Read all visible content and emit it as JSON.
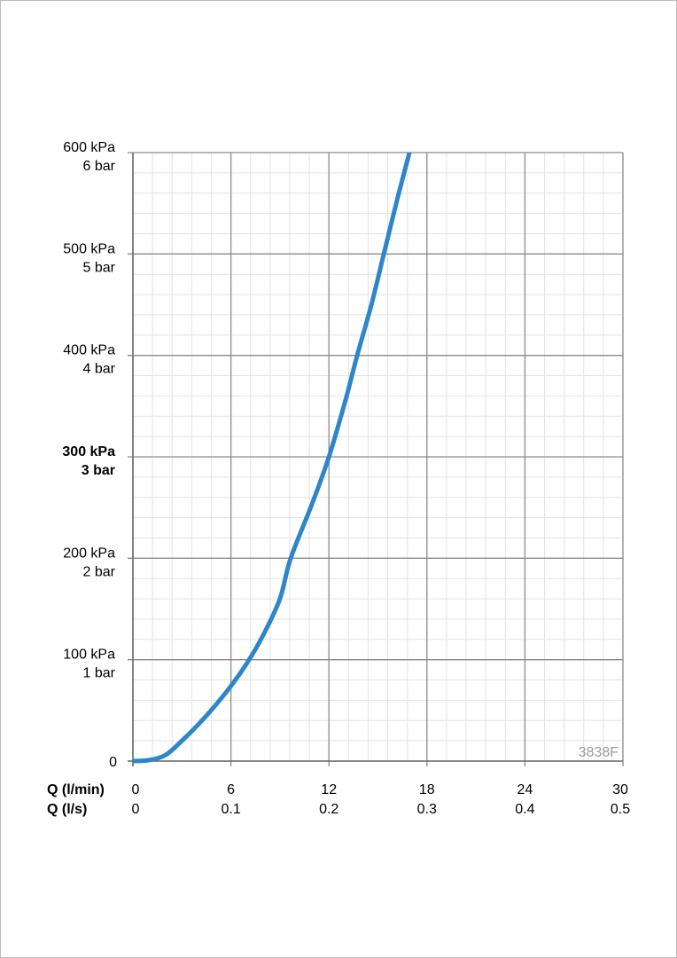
{
  "chart_data": {
    "type": "line",
    "title": "",
    "code_label": "3838F",
    "x_labels": {
      "primary": "Q (l/min)",
      "secondary": "Q (l/s)"
    },
    "x_ticks_primary": [
      "0",
      "6",
      "12",
      "18",
      "24",
      "30"
    ],
    "x_ticks_secondary": [
      "0",
      "0.1",
      "0.2",
      "0.3",
      "0.4",
      "0.5"
    ],
    "y_ticks": [
      {
        "kpa": "0",
        "bar": ""
      },
      {
        "kpa": "100 kPa",
        "bar": "1 bar"
      },
      {
        "kpa": "200 kPa",
        "bar": "2 bar"
      },
      {
        "kpa": "300 kPa",
        "bar": "3 bar",
        "bold": true
      },
      {
        "kpa": "400 kPa",
        "bar": "4 bar"
      },
      {
        "kpa": "500 kPa",
        "bar": "5 bar"
      },
      {
        "kpa": "600 kPa",
        "bar": "6 bar"
      }
    ],
    "xlim": [
      0,
      30
    ],
    "ylim": [
      0,
      600
    ],
    "grid": true,
    "line_color": "#2e86c8",
    "series": [
      {
        "x": [
          0,
          1,
          2,
          3,
          4,
          5,
          6,
          7,
          8,
          9,
          9.66,
          11,
          12,
          13,
          13.73,
          14.6,
          15.36,
          16.2,
          16.93
        ],
        "y": [
          0,
          1,
          6,
          20,
          36,
          54,
          74,
          97,
          125,
          160,
          200,
          255,
          300,
          355,
          400,
          450,
          500,
          555,
          600
        ]
      }
    ]
  }
}
